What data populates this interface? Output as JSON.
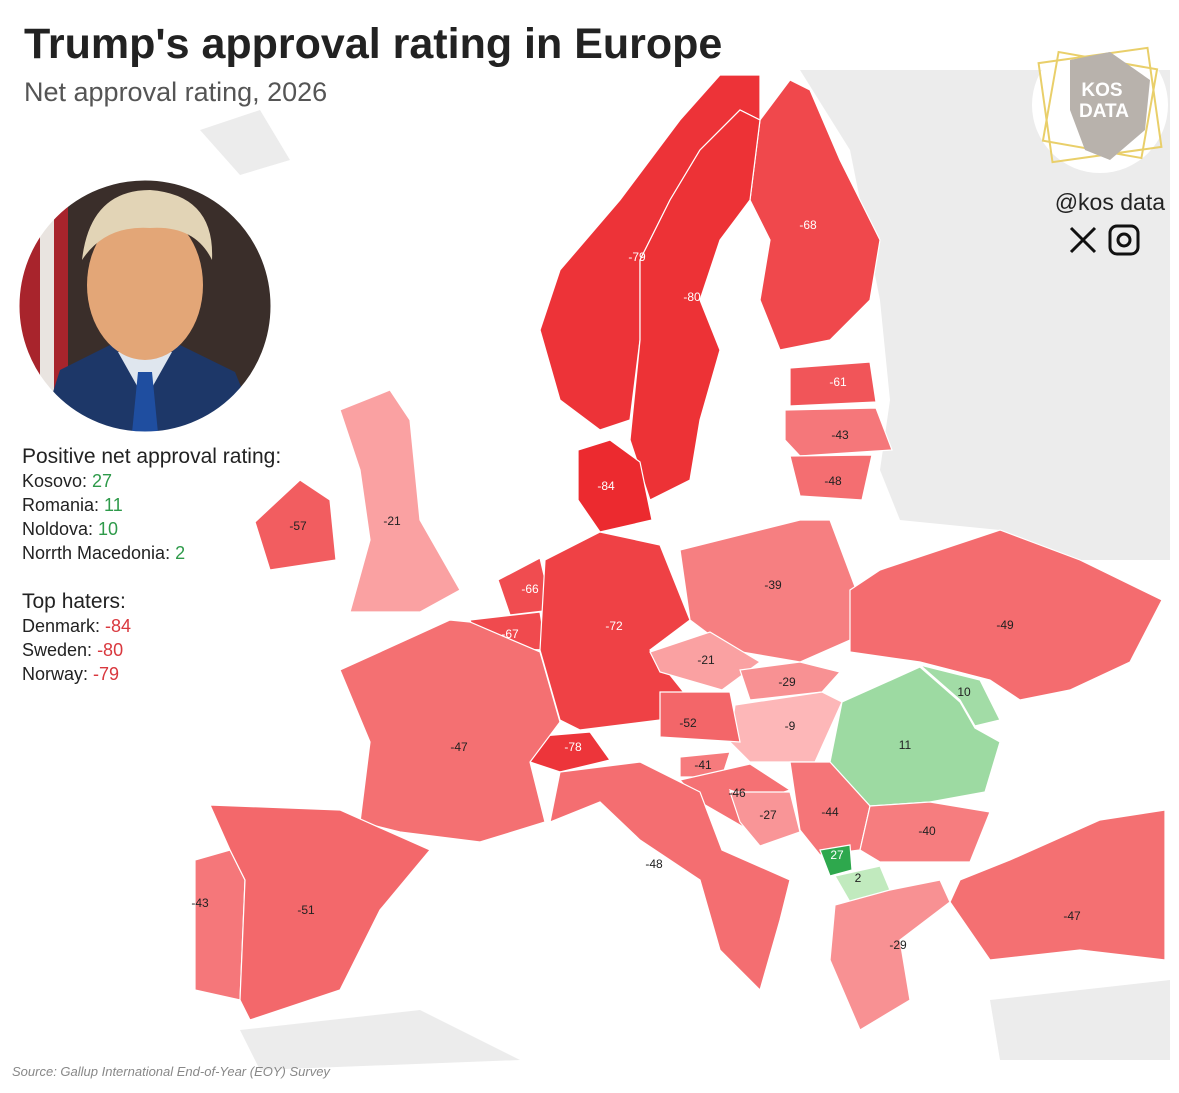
{
  "header": {
    "title": "Trump's approval rating in Europe",
    "subtitle": "Net approval rating, 2026"
  },
  "brand": {
    "logo_lines": [
      "KOS",
      "DATA"
    ],
    "handle": "@kos data"
  },
  "legend_positive": {
    "heading": "Positive net approval rating:",
    "value_color": "#2e9a4a",
    "items": [
      {
        "label": "Kosovo:",
        "value": 27
      },
      {
        "label": "Romania:",
        "value": 11
      },
      {
        "label": "Noldova:",
        "value": 10
      },
      {
        "label": "Norrth Macedonia:",
        "value": 2
      }
    ]
  },
  "legend_haters": {
    "heading": "Top haters:",
    "value_color": "#d9383e",
    "items": [
      {
        "label": "Denmark:",
        "value": -84
      },
      {
        "label": "Sweden:",
        "value": -80
      },
      {
        "label": "Norway:",
        "value": -79
      }
    ]
  },
  "map": {
    "regions": [
      {
        "value": -68
      },
      {
        "value": -79
      },
      {
        "value": -80
      },
      {
        "value": -61
      },
      {
        "value": -43
      },
      {
        "value": -48
      },
      {
        "value": -84
      },
      {
        "value": -57
      },
      {
        "value": -21
      },
      {
        "value": -66
      },
      {
        "value": -67
      },
      {
        "value": -72
      },
      {
        "value": -39
      },
      {
        "value": -49
      },
      {
        "value": -21
      },
      {
        "value": -29
      },
      {
        "value": -9
      },
      {
        "value": 10
      },
      {
        "value": 11
      },
      {
        "value": -52
      },
      {
        "value": -78
      },
      {
        "value": -47
      },
      {
        "value": -41
      },
      {
        "value": -46
      },
      {
        "value": -27
      },
      {
        "value": -44
      },
      {
        "value": -40
      },
      {
        "value": 27
      },
      {
        "value": 2
      },
      {
        "value": -48
      },
      {
        "value": -43
      },
      {
        "value": -51
      },
      {
        "value": -29
      },
      {
        "value": -47
      }
    ]
  },
  "source": "Source: Gallup International End-of-Year (EOY) Survey"
}
